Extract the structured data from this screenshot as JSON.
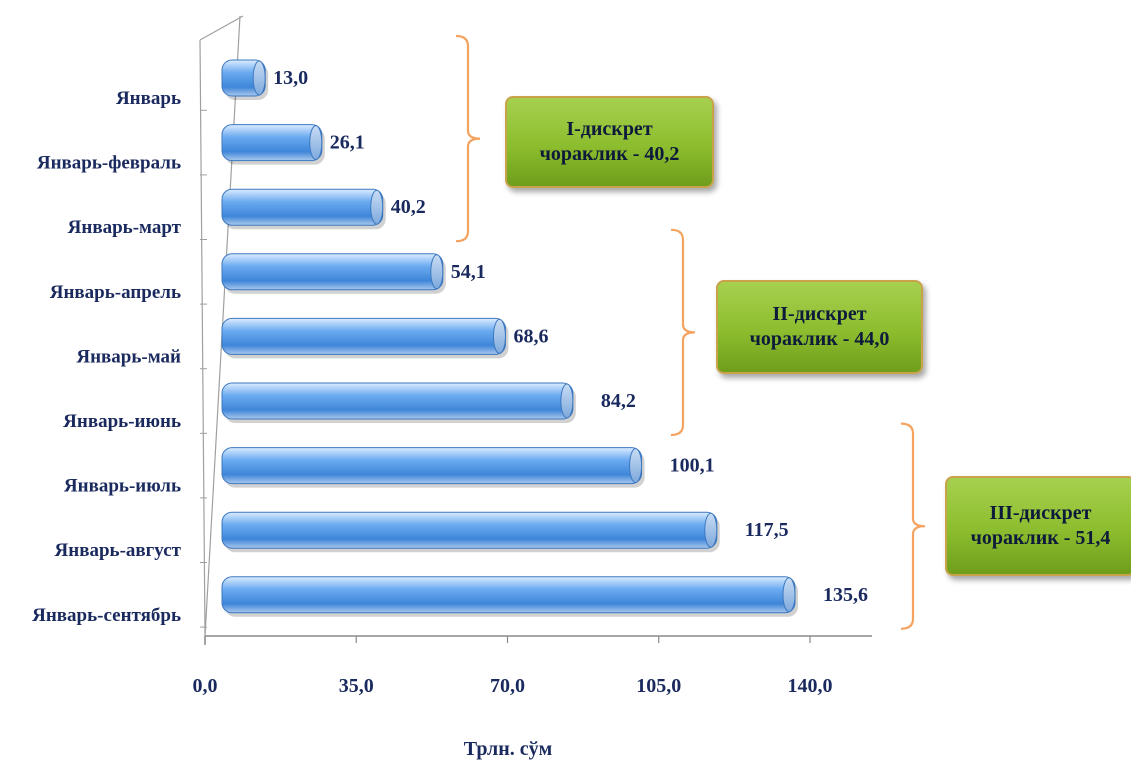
{
  "chart_data": {
    "type": "bar",
    "orientation": "horizontal",
    "categories": [
      "Январь",
      "Январь-февраль",
      "Январь-март",
      "Январь-апрель",
      "Январь-май",
      "Январь-июнь",
      "Январь-июль",
      "Январь-август",
      "Январь-сентябрь"
    ],
    "values": [
      13.0,
      26.1,
      40.2,
      54.1,
      68.6,
      84.2,
      100.1,
      117.5,
      135.6
    ],
    "value_labels": [
      "13,0",
      "26,1",
      "40,2",
      "54,1",
      "68,6",
      "84,2",
      "100,1",
      "117,5",
      "135,6"
    ],
    "xlim": [
      0,
      140
    ],
    "x_ticks": [
      "0,0",
      "35,0",
      "70,0",
      "105,0",
      "140,0"
    ],
    "xlabel": "Трлн. сўм",
    "ylabel": "",
    "title": "",
    "grid": false,
    "bar_color": "#4f97e6",
    "annotations": [
      {
        "line1": "I-дискрет",
        "line2": "чораклик - 40,2",
        "from": 0,
        "to": 2
      },
      {
        "line1": "II-дискрет",
        "line2": "чораклик - 44,0",
        "from": 3,
        "to": 5
      },
      {
        "line1": "III-дискрет",
        "line2": "чораклик - 51,4",
        "from": 6,
        "to": 8
      }
    ],
    "annotation_color": "#8cbd2e",
    "bracket_color": "#f4a460"
  }
}
